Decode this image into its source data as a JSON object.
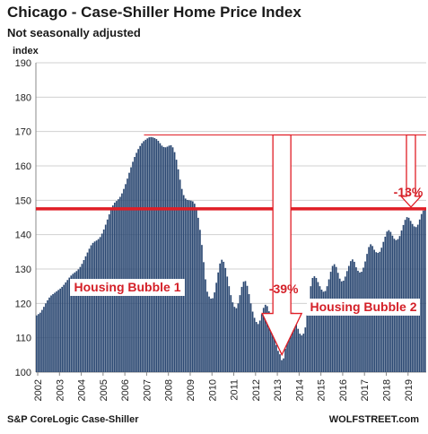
{
  "header": {
    "title": "Chicago - Case-Shiller Home Price Index",
    "subtitle": "Not seasonally adjusted",
    "ylabel": "index"
  },
  "footer": {
    "source": "S&P CoreLogic Case-Shiller",
    "brand": "WOLFSTREET.com"
  },
  "colors": {
    "bar": "#2b4872",
    "bar_edge": "#1c3050",
    "line": "#e01e26",
    "annotation": "#d42028",
    "arrow_outline": "#e01e26"
  },
  "chart_data": {
    "type": "bar",
    "title": "Chicago - Case-Shiller Home Price Index",
    "ylabel": "index",
    "ylim": [
      100,
      190
    ],
    "yticks": [
      100,
      110,
      120,
      130,
      140,
      150,
      160,
      170,
      180,
      190
    ],
    "xtick_labels": [
      "2002",
      "2003",
      "2004",
      "2005",
      "2006",
      "2007",
      "2008",
      "2009",
      "2010",
      "2011",
      "2012",
      "2013",
      "2014",
      "2015",
      "2016",
      "2017",
      "2018",
      "2019"
    ],
    "x_start": "2002-01",
    "frequency": "monthly",
    "grid": true,
    "values": [
      116.5,
      116.9,
      117.3,
      118.1,
      119.0,
      120.0,
      120.9,
      121.7,
      122.3,
      122.7,
      123.1,
      123.5,
      123.9,
      124.3,
      124.8,
      125.4,
      126.1,
      126.8,
      127.5,
      128.1,
      128.6,
      129.0,
      129.4,
      129.9,
      130.6,
      131.5,
      132.6,
      133.7,
      134.8,
      135.9,
      136.9,
      137.6,
      138.0,
      138.3,
      138.7,
      139.3,
      140.3,
      141.5,
      142.9,
      144.4,
      145.9,
      147.3,
      148.5,
      149.3,
      149.8,
      150.3,
      151.0,
      152.0,
      153.3,
      154.7,
      156.3,
      158.0,
      159.6,
      161.2,
      162.6,
      163.8,
      164.9,
      165.8,
      166.6,
      167.2,
      167.6,
      168.0,
      168.3,
      168.4,
      168.3,
      168.1,
      167.8,
      167.3,
      166.6,
      165.9,
      165.5,
      165.4,
      165.6,
      165.9,
      166.0,
      165.4,
      164.0,
      161.8,
      159.0,
      156.0,
      153.3,
      151.5,
      150.5,
      150.1,
      150.0,
      149.9,
      149.7,
      149.0,
      147.4,
      144.9,
      141.4,
      137.0,
      132.0,
      127.0,
      123.4,
      122.0,
      121.4,
      121.5,
      123.2,
      126.0,
      129.0,
      131.6,
      132.7,
      132.1,
      130.3,
      127.8,
      125.0,
      122.4,
      120.3,
      119.0,
      118.6,
      120.0,
      122.4,
      124.8,
      126.3,
      126.5,
      125.1,
      122.7,
      120.0,
      117.6,
      115.8,
      114.6,
      114.0,
      115.0,
      116.9,
      118.7,
      119.6,
      119.2,
      117.7,
      115.3,
      112.6,
      110.0,
      107.9,
      106.2,
      105.2,
      103.5,
      104.0,
      106.8,
      110.4,
      114.0,
      116.5,
      117.3,
      116.4,
      114.5,
      112.6,
      111.2,
      110.7,
      111.2,
      113.0,
      116.5,
      121.0,
      125.0,
      127.4,
      127.9,
      127.4,
      126.2,
      125.0,
      124.0,
      123.4,
      123.6,
      125.0,
      127.0,
      129.2,
      130.9,
      131.4,
      130.6,
      128.9,
      127.2,
      126.4,
      126.6,
      127.8,
      129.4,
      130.9,
      132.3,
      132.8,
      132.1,
      130.5,
      129.5,
      129.0,
      129.2,
      130.4,
      132.2,
      134.4,
      136.4,
      137.2,
      136.7,
      135.6,
      134.9,
      134.7,
      135.0,
      136.2,
      137.9,
      139.4,
      140.9,
      141.3,
      140.8,
      139.7,
      138.8,
      138.4,
      138.7,
      139.6,
      141.2,
      142.8,
      144.3,
      145.1,
      144.9,
      144.0,
      143.1,
      142.4,
      142.2,
      142.9,
      144.4,
      146.0,
      147.0,
      147.3
    ],
    "reference_lines": [
      {
        "value": 169.0,
        "color": "#e01e26",
        "style": "thin"
      },
      {
        "value": 147.5,
        "color": "#e01e26",
        "style": "thick"
      }
    ],
    "annotations": [
      {
        "text": "Housing Bubble 1"
      },
      {
        "text": "Housing Bubble 2"
      },
      {
        "text": "-39%"
      },
      {
        "text": "-13%"
      }
    ]
  }
}
